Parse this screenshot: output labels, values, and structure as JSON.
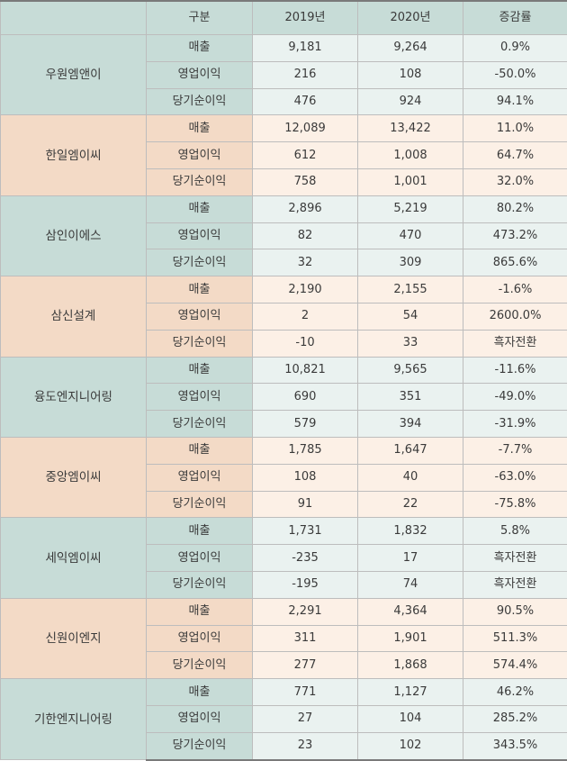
{
  "header": [
    "구분",
    "2019년",
    "2020년",
    "증감률"
  ],
  "groups": [
    {
      "company": "우원엠앤이",
      "tone": "green",
      "rows": [
        {
          "label": "매출",
          "y2019": "9,181",
          "y2020": "9,264",
          "change": "0.9%"
        },
        {
          "label": "영업이익",
          "y2019": "216",
          "y2020": "108",
          "change": "-50.0%"
        },
        {
          "label": "당기순이익",
          "y2019": "476",
          "y2020": "924",
          "change": "94.1%"
        }
      ]
    },
    {
      "company": "한일엠이씨",
      "tone": "peach",
      "rows": [
        {
          "label": "매출",
          "y2019": "12,089",
          "y2020": "13,422",
          "change": "11.0%"
        },
        {
          "label": "영업이익",
          "y2019": "612",
          "y2020": "1,008",
          "change": "64.7%"
        },
        {
          "label": "당기순이익",
          "y2019": "758",
          "y2020": "1,001",
          "change": "32.0%"
        }
      ]
    },
    {
      "company": "삼인이에스",
      "tone": "green",
      "rows": [
        {
          "label": "매출",
          "y2019": "2,896",
          "y2020": "5,219",
          "change": "80.2%"
        },
        {
          "label": "영업이익",
          "y2019": "82",
          "y2020": "470",
          "change": "473.2%"
        },
        {
          "label": "당기순이익",
          "y2019": "32",
          "y2020": "309",
          "change": "865.6%"
        }
      ]
    },
    {
      "company": "삼신설계",
      "tone": "peach",
      "rows": [
        {
          "label": "매출",
          "y2019": "2,190",
          "y2020": "2,155",
          "change": "-1.6%"
        },
        {
          "label": "영업이익",
          "y2019": "2",
          "y2020": "54",
          "change": "2600.0%"
        },
        {
          "label": "당기순이익",
          "y2019": "-10",
          "y2020": "33",
          "change": "흑자전환"
        }
      ]
    },
    {
      "company": "융도엔지니어링",
      "tone": "green",
      "rows": [
        {
          "label": "매출",
          "y2019": "10,821",
          "y2020": "9,565",
          "change": "-11.6%"
        },
        {
          "label": "영업이익",
          "y2019": "690",
          "y2020": "351",
          "change": "-49.0%"
        },
        {
          "label": "당기순이익",
          "y2019": "579",
          "y2020": "394",
          "change": "-31.9%"
        }
      ]
    },
    {
      "company": "중앙엠이씨",
      "tone": "peach",
      "rows": [
        {
          "label": "매출",
          "y2019": "1,785",
          "y2020": "1,647",
          "change": "-7.7%"
        },
        {
          "label": "영업이익",
          "y2019": "108",
          "y2020": "40",
          "change": "-63.0%"
        },
        {
          "label": "당기순이익",
          "y2019": "91",
          "y2020": "22",
          "change": "-75.8%"
        }
      ]
    },
    {
      "company": "세익엠이씨",
      "tone": "green",
      "rows": [
        {
          "label": "매출",
          "y2019": "1,731",
          "y2020": "1,832",
          "change": "5.8%"
        },
        {
          "label": "영업이익",
          "y2019": "-235",
          "y2020": "17",
          "change": "흑자전환"
        },
        {
          "label": "당기순이익",
          "y2019": "-195",
          "y2020": "74",
          "change": "흑자전환"
        }
      ]
    },
    {
      "company": "신원이엔지",
      "tone": "peach",
      "rows": [
        {
          "label": "매출",
          "y2019": "2,291",
          "y2020": "4,364",
          "change": "90.5%"
        },
        {
          "label": "영업이익",
          "y2019": "311",
          "y2020": "1,901",
          "change": "511.3%"
        },
        {
          "label": "당기순이익",
          "y2019": "277",
          "y2020": "1,868",
          "change": "574.4%"
        }
      ]
    },
    {
      "company": "기한엔지니어링",
      "tone": "green",
      "rows": [
        {
          "label": "매출",
          "y2019": "771",
          "y2020": "1,127",
          "change": "46.2%"
        },
        {
          "label": "영업이익",
          "y2019": "27",
          "y2020": "104",
          "change": "285.2%"
        },
        {
          "label": "당기순이익",
          "y2019": "23",
          "y2020": "102",
          "change": "343.5%"
        }
      ]
    }
  ]
}
